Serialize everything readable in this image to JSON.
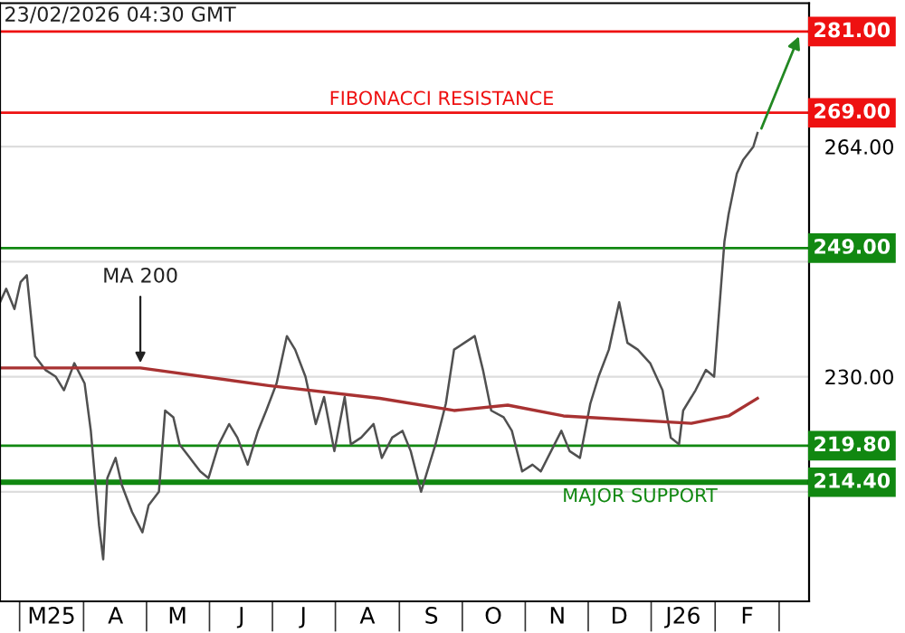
{
  "chart_data": {
    "type": "line",
    "title": "23/02/2026 04:30 GMT",
    "series": [
      {
        "color": "#505050",
        "x": [
          "2025-02-18",
          "2025-02-21",
          "2025-02-25",
          "2025-02-28",
          "2025-03-03",
          "2025-03-07",
          "2025-03-12",
          "2025-03-17",
          "2025-03-21",
          "2025-03-26",
          "2025-03-31",
          "2025-04-03",
          "2025-04-07",
          "2025-04-09",
          "2025-04-11",
          "2025-04-15",
          "2025-04-18",
          "2025-04-23",
          "2025-04-28",
          "2025-05-01",
          "2025-05-06",
          "2025-05-09",
          "2025-05-13",
          "2025-05-16",
          "2025-05-21",
          "2025-05-26",
          "2025-05-30",
          "2025-06-04",
          "2025-06-09",
          "2025-06-13",
          "2025-06-18",
          "2025-06-23",
          "2025-06-27",
          "2025-07-02",
          "2025-07-07",
          "2025-07-11",
          "2025-07-16",
          "2025-07-21",
          "2025-07-25",
          "2025-07-30",
          "2025-08-04",
          "2025-08-07",
          "2025-08-12",
          "2025-08-18",
          "2025-08-22",
          "2025-08-27",
          "2025-09-01",
          "2025-09-05",
          "2025-09-10",
          "2025-09-12",
          "2025-09-17",
          "2025-09-22",
          "2025-09-26",
          "2025-10-01",
          "2025-10-06",
          "2025-10-10",
          "2025-10-14",
          "2025-10-20",
          "2025-10-24",
          "2025-10-29",
          "2025-11-03",
          "2025-11-07",
          "2025-11-12",
          "2025-11-17",
          "2025-11-21",
          "2025-11-26",
          "2025-12-01",
          "2025-12-05",
          "2025-12-10",
          "2025-12-15",
          "2025-12-19",
          "2025-12-24",
          "2025-12-30",
          "2026-01-05",
          "2026-01-09",
          "2026-01-13",
          "2026-01-15",
          "2026-01-21",
          "2026-01-26",
          "2026-01-30",
          "2026-02-02",
          "2026-02-04",
          "2026-02-06",
          "2026-02-10",
          "2026-02-13",
          "2026-02-18",
          "2026-02-20"
        ],
        "values": [
          241,
          243,
          240,
          244,
          245,
          233,
          231,
          230,
          228,
          232,
          229,
          222,
          208,
          203,
          215,
          218,
          214,
          210,
          207,
          211,
          213,
          225,
          224,
          220,
          218,
          216,
          215,
          220,
          223,
          221,
          217,
          222,
          225,
          229,
          236,
          234,
          230,
          223,
          227,
          219,
          227,
          220,
          221,
          223,
          218,
          221,
          222,
          219,
          213,
          215,
          220,
          226,
          234,
          235,
          236,
          231,
          225,
          224,
          222,
          216,
          217,
          216,
          219,
          222,
          219,
          218,
          226,
          230,
          234,
          241,
          235,
          234,
          232,
          228,
          221,
          220,
          225,
          228,
          231,
          230,
          242,
          250,
          254,
          260,
          262,
          264,
          266
        ]
      },
      {
        "name": "MA 200",
        "color": "#a83232",
        "x": [
          "2025-02-18",
          "2025-04-27",
          "2025-06-28",
          "2025-08-21",
          "2025-09-26",
          "2025-10-22",
          "2025-11-18",
          "2026-01-19",
          "2026-02-06",
          "2026-02-20"
        ],
        "values": [
          231.3,
          231.3,
          228.7,
          226.8,
          225,
          225.8,
          224.2,
          223.1,
          224.2,
          226.8
        ]
      }
    ],
    "xlim": [
      "2025-02-18",
      "2026-03-17"
    ],
    "xticks": [
      {
        "value": "2025-03-15",
        "label": "M25"
      },
      {
        "value": "2025-04-15",
        "label": "A"
      },
      {
        "value": "2025-05-15",
        "label": "M"
      },
      {
        "value": "2025-06-15",
        "label": "J"
      },
      {
        "value": "2025-07-15",
        "label": "J"
      },
      {
        "value": "2025-08-15",
        "label": "A"
      },
      {
        "value": "2025-09-15",
        "label": "S"
      },
      {
        "value": "2025-10-15",
        "label": "O"
      },
      {
        "value": "2025-11-15",
        "label": "N"
      },
      {
        "value": "2025-12-15",
        "label": "D"
      },
      {
        "value": "2026-01-15",
        "label": "J26"
      },
      {
        "value": "2026-02-15",
        "label": "F"
      }
    ],
    "ylim": [
      196.8,
      285.2
    ],
    "yticks": [
      {
        "value": 213,
        "label": null
      },
      {
        "value": 230,
        "label": "230.00"
      },
      {
        "value": 247,
        "label": null
      },
      {
        "value": 264,
        "label": "264.00"
      }
    ],
    "grid": "y",
    "ref_lines": [
      {
        "axis": "y",
        "value": 281,
        "label": "281.00",
        "color": "#ee1111"
      },
      {
        "axis": "y",
        "value": 269,
        "label": "269.00",
        "color": "#ee1111"
      },
      {
        "axis": "y",
        "value": 249,
        "label": "249.00",
        "color": "#118811"
      },
      {
        "axis": "y",
        "value": 219.8,
        "label": "219.80",
        "color": "#118811"
      },
      {
        "axis": "y",
        "value": 214.4,
        "label": "214.40",
        "color": "#118811"
      }
    ],
    "annotations": [
      {
        "text": "FIBONACCI RESISTANCE",
        "x": "2025-09-20",
        "y": 269
      },
      {
        "text": "MAJOR SUPPORT",
        "x": "2025-12-25",
        "y": 214.4
      }
    ]
  }
}
